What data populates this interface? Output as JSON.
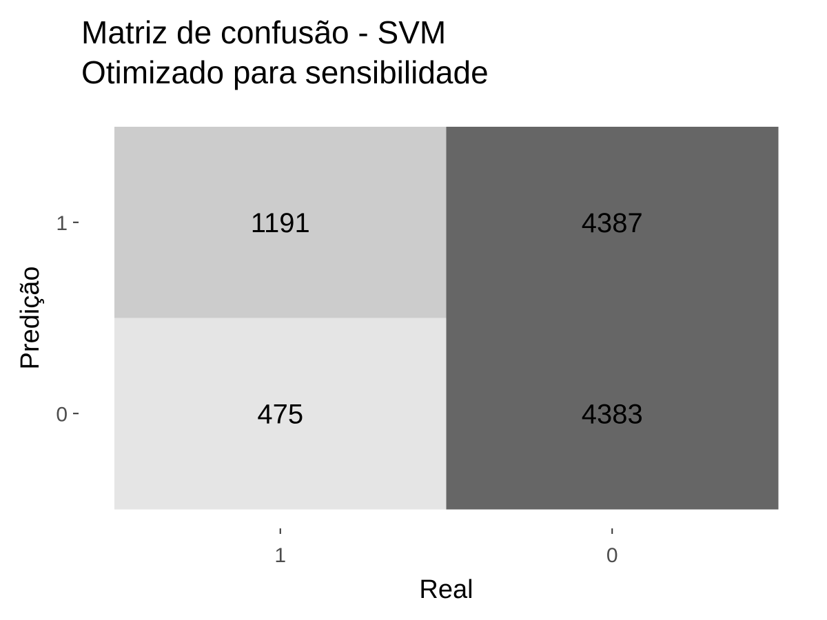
{
  "chart_data": {
    "type": "heatmap",
    "title_lines": [
      "Matriz de confusão - SVM",
      "Otimizado para sensibilidade"
    ],
    "xlabel": "Real",
    "ylabel": "Predição",
    "x_categories": [
      "1",
      "0"
    ],
    "y_categories": [
      "1",
      "0"
    ],
    "cells": [
      {
        "real": "1",
        "pred": "1",
        "value": 1191,
        "color": "#cccccc"
      },
      {
        "real": "0",
        "pred": "1",
        "value": 4387,
        "color": "#666666"
      },
      {
        "real": "1",
        "pred": "0",
        "value": 475,
        "color": "#e5e5e5"
      },
      {
        "real": "0",
        "pred": "0",
        "value": 4383,
        "color": "#666666"
      }
    ],
    "grid": false,
    "legend": "none"
  }
}
